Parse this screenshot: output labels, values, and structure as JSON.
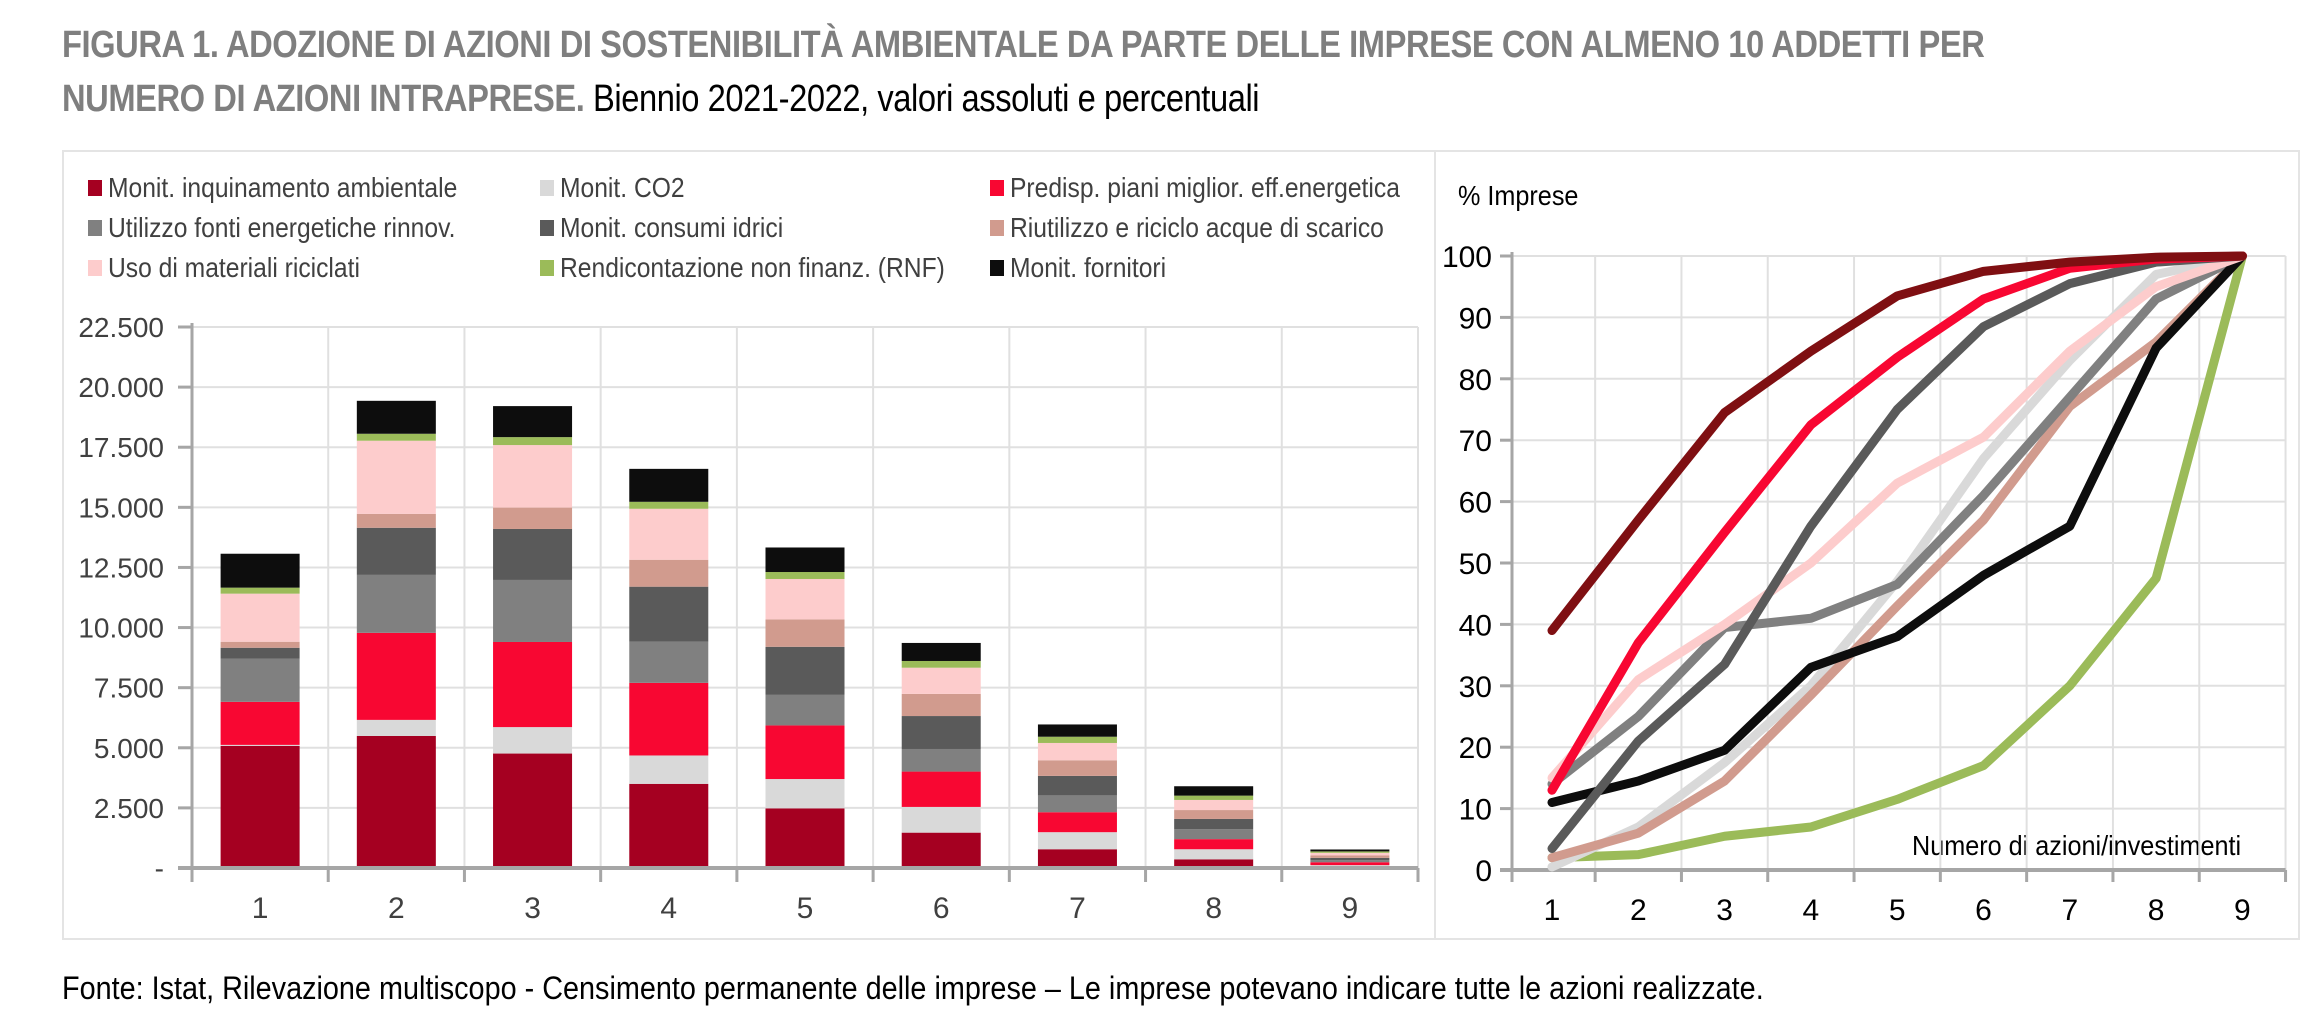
{
  "title": {
    "bold": "FIGURA 1. ADOZIONE DI AZIONI DI SOSTENIBILITÀ AMBIENTALE DA PARTE DELLE IMPRESE CON ALMENO 10 ADDETTI PER",
    "bold2": "NUMERO DI AZIONI INTRAPRESE.",
    "regular": "Biennio 2021-2022, valori assoluti e percentuali"
  },
  "footer": "Fonte: Istat, Rilevazione multiscopo - Censimento permanente delle imprese – Le imprese potevano indicare tutte le azioni realizzate.",
  "legend": [
    {
      "label": "Monit. inquinamento ambientale",
      "color": "#a50021"
    },
    {
      "label": "Monit. CO2",
      "color": "#d9d9d9"
    },
    {
      "label": "Predisp. piani miglior. eff.energetica",
      "color": "#f80732"
    },
    {
      "label": "Utilizzo fonti energetiche rinnov.",
      "color": "#808080"
    },
    {
      "label": "Monit. consumi idrici",
      "color": "#5a5a5a"
    },
    {
      "label": "Riutilizzo e riciclo acque di scarico",
      "color": "#d19b8e"
    },
    {
      "label": "Uso di materiali riciclati",
      "color": "#fdcccc"
    },
    {
      "label": "Rendicontazione non finanz. (RNF)",
      "color": "#9bbb59"
    },
    {
      "label": "Monit. fornitori",
      "color": "#0d0d0d"
    }
  ],
  "chart_data": [
    {
      "type": "bar",
      "stacked": true,
      "title": "",
      "xlabel": "",
      "ylabel": "",
      "categories": [
        "1",
        "2",
        "3",
        "4",
        "5",
        "6",
        "7",
        "8",
        "9"
      ],
      "ylim": [
        0,
        22500
      ],
      "yticks": [
        "-",
        "2.500",
        "5.000",
        "7.500",
        "10.000",
        "12.500",
        "15.000",
        "17.500",
        "20.000",
        "22.500"
      ],
      "ytick_values": [
        0,
        2500,
        5000,
        7500,
        10000,
        12500,
        15000,
        17500,
        20000,
        22500
      ],
      "grid": true,
      "legend_position": "top",
      "series": [
        {
          "name": "Monit. inquinamento ambientale",
          "color": "#a50021",
          "values": [
            5080,
            5490,
            4760,
            3500,
            2480,
            1470,
            780,
            360,
            40
          ]
        },
        {
          "name": "Monit. CO2",
          "color": "#d9d9d9",
          "values": [
            40,
            670,
            1100,
            1180,
            1220,
            1070,
            710,
            420,
            80
          ]
        },
        {
          "name": "Predisp. piani miglior. eff.energetica",
          "color": "#f80732",
          "values": [
            1790,
            3620,
            3540,
            3020,
            2230,
            1470,
            830,
            420,
            120
          ]
        },
        {
          "name": "Utilizzo fonti energetiche rinnov.",
          "color": "#808080",
          "values": [
            1790,
            2410,
            2580,
            1710,
            1270,
            940,
            700,
            420,
            90
          ]
        },
        {
          "name": "Monit. consumi idrici",
          "color": "#5a5a5a",
          "values": [
            460,
            1960,
            2120,
            2290,
            2000,
            1370,
            810,
            420,
            90
          ]
        },
        {
          "name": "Riutilizzo e riciclo acque di scarico",
          "color": "#d19b8e",
          "values": [
            250,
            580,
            890,
            1120,
            1140,
            920,
            650,
            370,
            100
          ]
        },
        {
          "name": "Uso di materiali riciclati",
          "color": "#fdcccc",
          "values": [
            2000,
            3040,
            2600,
            2120,
            1680,
            1090,
            720,
            420,
            110
          ]
        },
        {
          "name": "Rendicontazione non finanz. (RNF)",
          "color": "#9bbb59",
          "values": [
            250,
            290,
            330,
            290,
            290,
            280,
            260,
            180,
            60
          ]
        },
        {
          "name": "Monit. fornitori",
          "color": "#0d0d0d",
          "values": [
            1410,
            1370,
            1290,
            1370,
            1020,
            750,
            510,
            390,
            80
          ]
        }
      ]
    },
    {
      "type": "line",
      "title": "",
      "ylabel": "% Imprese",
      "xlabel": "Numero di azioni/investimenti",
      "x": [
        1,
        2,
        3,
        4,
        5,
        6,
        7,
        8,
        9
      ],
      "xticks": [
        "1",
        "2",
        "3",
        "4",
        "5",
        "6",
        "7",
        "8",
        "9"
      ],
      "ylim": [
        0,
        100
      ],
      "yticks": [
        "0",
        "10",
        "20",
        "30",
        "40",
        "50",
        "60",
        "70",
        "80",
        "90",
        "100"
      ],
      "ytick_values": [
        0,
        10,
        20,
        30,
        40,
        50,
        60,
        70,
        80,
        90,
        100
      ],
      "grid": true,
      "series": [
        {
          "name": "Monit. inquinamento ambientale",
          "color": "#7f0f12",
          "values": [
            39,
            57,
            74.5,
            84.5,
            93.5,
            97.5,
            99,
            99.8,
            100
          ]
        },
        {
          "name": "Monit. CO2",
          "color": "#d9d9d9",
          "values": [
            0.5,
            7,
            17.5,
            30,
            47,
            67,
            83,
            97,
            100
          ]
        },
        {
          "name": "Predisp. piani miglior. eff.energetica",
          "color": "#f80732",
          "values": [
            13,
            37,
            55,
            72.5,
            83.5,
            93,
            98,
            99.5,
            100
          ]
        },
        {
          "name": "Utilizzo fonti energetiche rinnov.",
          "color": "#808080",
          "values": [
            14,
            25,
            39.5,
            41,
            46.5,
            61,
            77,
            93,
            100
          ]
        },
        {
          "name": "Monit. consumi idrici",
          "color": "#5a5a5a",
          "values": [
            3.5,
            21,
            33.5,
            56,
            75,
            88.5,
            95.5,
            99,
            100
          ]
        },
        {
          "name": "Riutilizzo e riciclo acque di scarico",
          "color": "#d19b8e",
          "values": [
            2,
            6,
            14.5,
            28.5,
            43,
            57,
            75.5,
            86,
            100
          ]
        },
        {
          "name": "Uso di materiali riciclati",
          "color": "#fdcccc",
          "values": [
            15,
            31,
            40,
            50,
            63,
            70.5,
            84.5,
            95,
            100
          ]
        },
        {
          "name": "Rendicontazione non finanz. (RNF)",
          "color": "#9bbb59",
          "values": [
            2,
            2.5,
            5.5,
            7,
            11.5,
            17,
            30,
            47.5,
            100
          ]
        },
        {
          "name": "Monit. fornitori",
          "color": "#0d0d0d",
          "values": [
            11,
            14.5,
            19.5,
            33,
            38,
            48,
            56,
            85,
            100
          ]
        }
      ]
    }
  ]
}
